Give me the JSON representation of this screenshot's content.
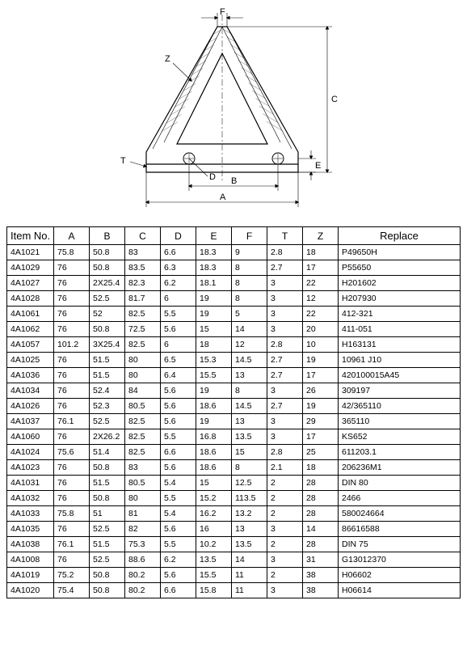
{
  "diagram": {
    "labels": {
      "A": "A",
      "B": "B",
      "C": "C",
      "D": "D",
      "E": "E",
      "F": "F",
      "T": "T",
      "Z": "Z"
    },
    "stroke": "#000000",
    "hatch": "#000000",
    "fontsize": 11
  },
  "table": {
    "columns": [
      "Item No.",
      "A",
      "B",
      "C",
      "D",
      "E",
      "F",
      "T",
      "Z",
      "Replace"
    ],
    "rows": [
      [
        "4A1021",
        "75.8",
        "50.8",
        "83",
        "6.6",
        "18.3",
        "9",
        "2.8",
        "18",
        "P49650H"
      ],
      [
        "4A1029",
        "76",
        "50.8",
        "83.5",
        "6.3",
        "18.3",
        "8",
        "2.7",
        "17",
        "P55650"
      ],
      [
        "4A1027",
        "76",
        "2X25.4",
        "82.3",
        "6.2",
        "18.1",
        "8",
        "3",
        "22",
        "H201602"
      ],
      [
        "4A1028",
        "76",
        "52.5",
        "81.7",
        "6",
        "19",
        "8",
        "3",
        "12",
        "H207930"
      ],
      [
        "4A1061",
        "76",
        "52",
        "82.5",
        "5.5",
        "19",
        "5",
        "3",
        "22",
        "412-321"
      ],
      [
        "4A1062",
        "76",
        "50.8",
        "72.5",
        "5.6",
        "15",
        "14",
        "3",
        "20",
        "411-051"
      ],
      [
        "4A1057",
        "101.2",
        "3X25.4",
        "82.5",
        "6",
        "18",
        "12",
        "2.8",
        "10",
        "H163131"
      ],
      [
        "4A1025",
        "76",
        "51.5",
        "80",
        "6.5",
        "15.3",
        "14.5",
        "2.7",
        "19",
        "10961 J10"
      ],
      [
        "4A1036",
        "76",
        "51.5",
        "80",
        "6.4",
        "15.5",
        "13",
        "2.7",
        "17",
        "420100015A45"
      ],
      [
        "4A1034",
        "76",
        "52.4",
        "84",
        "5.6",
        "19",
        "8",
        "3",
        "26",
        "309197"
      ],
      [
        "4A1026",
        "76",
        "52.3",
        "80.5",
        "5.6",
        "18.6",
        "14.5",
        "2.7",
        "19",
        "42/365110"
      ],
      [
        "4A1037",
        "76.1",
        "52.5",
        "82.5",
        "5.6",
        "19",
        "13",
        "3",
        "29",
        "365110"
      ],
      [
        "4A1060",
        "76",
        "2X26.2",
        "82.5",
        "5.5",
        "16.8",
        "13.5",
        "3",
        "17",
        "KS652"
      ],
      [
        "4A1024",
        "75.6",
        "51.4",
        "82.5",
        "6.6",
        "18.6",
        "15",
        "2.8",
        "25",
        "611203.1"
      ],
      [
        "4A1023",
        "76",
        "50.8",
        "83",
        "5.6",
        "18.6",
        "8",
        "2.1",
        "18",
        "206236M1"
      ],
      [
        "4A1031",
        "76",
        "51.5",
        "80.5",
        "5.4",
        "15",
        "12.5",
        "2",
        "28",
        "DIN 80"
      ],
      [
        "4A1032",
        "76",
        "50.8",
        "80",
        "5.5",
        "15.2",
        "113.5",
        "2",
        "28",
        "2466"
      ],
      [
        "4A1033",
        "75.8",
        "51",
        "81",
        "5.4",
        "16.2",
        "13.2",
        "2",
        "28",
        "580024664"
      ],
      [
        "4A1035",
        "76",
        "52.5",
        "82",
        "5.6",
        "16",
        "13",
        "3",
        "14",
        "86616588"
      ],
      [
        "4A1038",
        "76.1",
        "51.5",
        "75.3",
        "5.5",
        "10.2",
        "13.5",
        "2",
        "28",
        "DIN 75"
      ],
      [
        "4A1008",
        "76",
        "52.5",
        "88.6",
        "6.2",
        "13.5",
        "14",
        "3",
        "31",
        "G13012370"
      ],
      [
        "4A1019",
        "75.2",
        "50.8",
        "80.2",
        "5.6",
        "15.5",
        "11",
        "2",
        "38",
        "H06602"
      ],
      [
        "4A1020",
        "75.4",
        "50.8",
        "80.2",
        "6.6",
        "15.8",
        "11",
        "3",
        "38",
        "H06614"
      ]
    ]
  }
}
